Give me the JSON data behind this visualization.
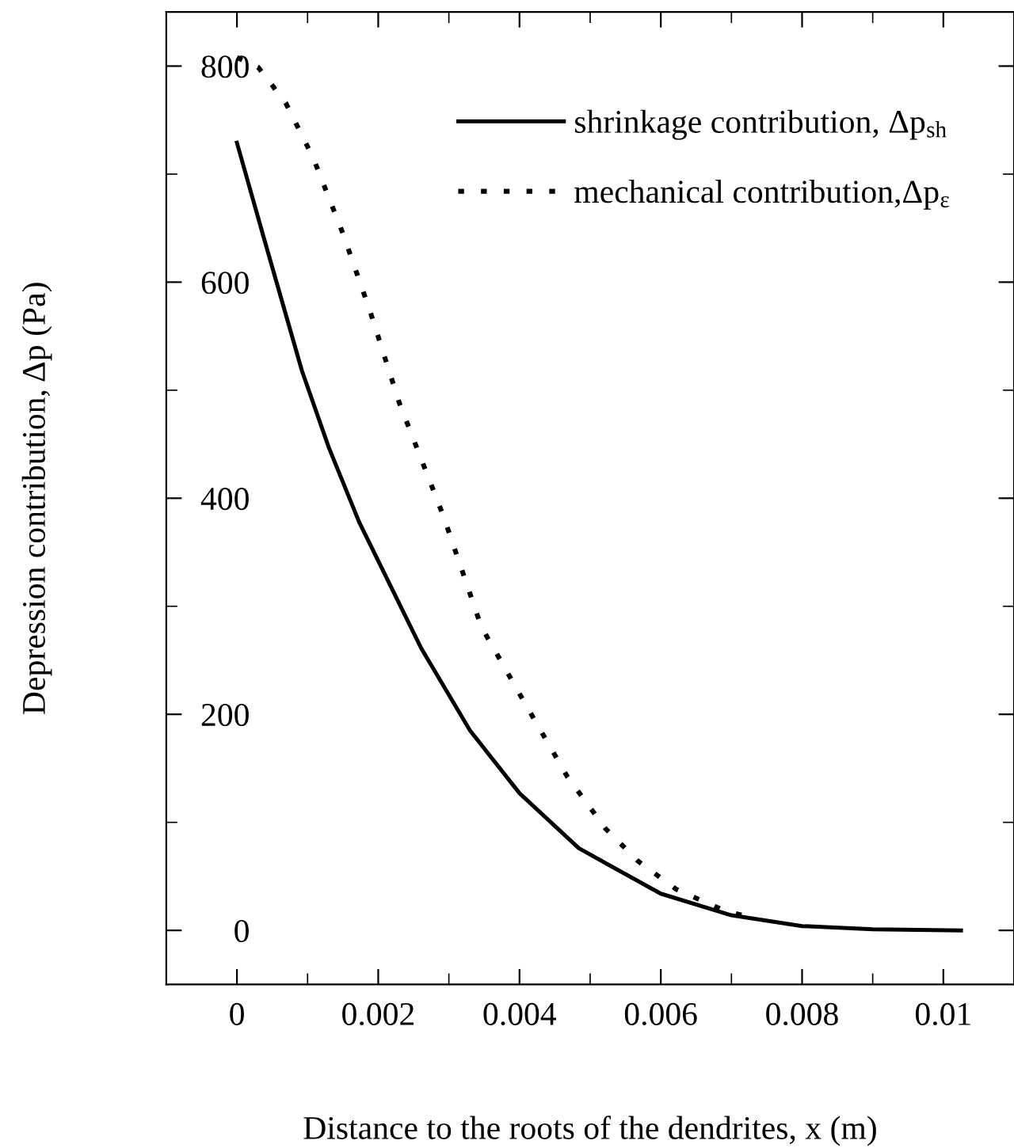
{
  "chart_data": {
    "type": "line",
    "xlabel": "Distance to the roots of the dendrites, x (m)",
    "ylabel": "Depression contribution, Δp (Pa)",
    "xlim": [
      -0.001,
      0.011
    ],
    "xticks": [
      0,
      0.002,
      0.004,
      0.006,
      0.008,
      {
        "value": 0.01,
        "label": "0.01"
      }
    ],
    "ylim": [
      -50,
      850
    ],
    "yticks": [
      0,
      200,
      400,
      600,
      800
    ],
    "grid": false,
    "legend": "top right",
    "marker": "none",
    "series": [
      {
        "name": "shrinkage contribution, Δp$_{sh}$",
        "color": "#000000",
        "line_style": "solid",
        "x": [
          0,
          0.000385,
          0.00092,
          0.0013,
          0.00173,
          0.002,
          0.00261,
          0.0033,
          0.004,
          0.00484,
          0.006,
          0.007,
          0.008,
          0.009,
          0.01025
        ],
        "values": [
          729,
          640,
          518,
          447,
          378,
          342,
          261,
          185,
          127,
          76,
          34,
          14,
          4,
          1,
          0
        ]
      },
      {
        "name": "mechanical contribution,Δp$_{ε}$",
        "color": "#000000",
        "line_style": "dotted",
        "x": [
          0,
          0.0003,
          0.00069,
          0.00108,
          0.0015,
          0.00188,
          0.0023,
          0.00292,
          0.00346,
          0.00407,
          0.00468,
          0.00522,
          0.00568,
          0.00622,
          0.00691,
          0.00722
        ],
        "values": [
          808,
          799,
          766,
          715,
          645,
          574,
          488,
          384,
          281,
          211,
          142,
          94,
          64,
          38,
          18,
          13
        ]
      }
    ]
  }
}
